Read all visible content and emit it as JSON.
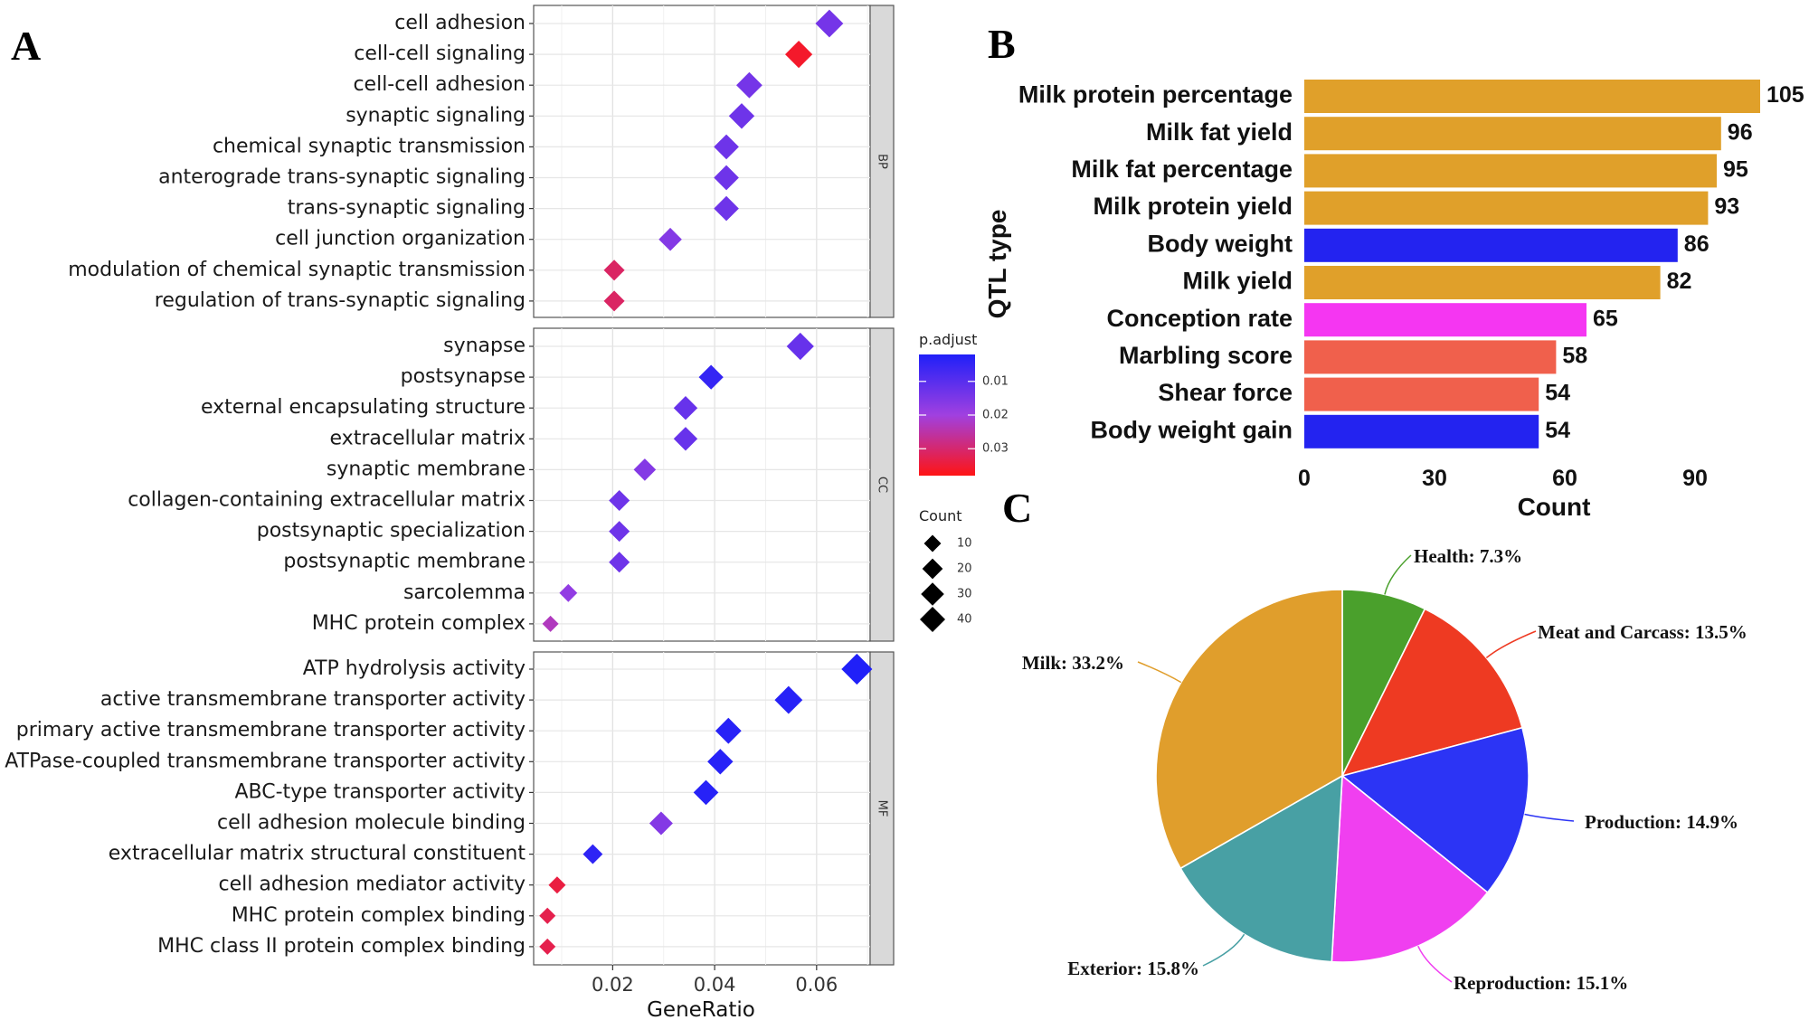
{
  "panels": {
    "a": "A",
    "b": "B",
    "c": "C"
  },
  "chart_data": [
    {
      "type": "scatter",
      "panel": "A",
      "xlabel": "GeneRatio",
      "x_ticks": [
        {
          "label": "0.02",
          "value": 0.02
        },
        {
          "label": "0.04",
          "value": 0.04
        },
        {
          "label": "0.06",
          "value": 0.06
        }
      ],
      "xlim": [
        0.0045,
        0.0705
      ],
      "grid": true,
      "color_scale": {
        "title": "p.adjust",
        "low_color": "#2020f8",
        "mid_color": "#a040e0",
        "high_color": "#ff1414",
        "range": [
          0.002,
          0.038
        ],
        "ticks": [
          {
            "label": "0.01",
            "value": 0.01
          },
          {
            "label": "0.02",
            "value": 0.02
          },
          {
            "label": "0.03",
            "value": 0.03
          }
        ]
      },
      "size_scale": {
        "title": "Count",
        "ticks": [
          {
            "label": "10",
            "value": 10
          },
          {
            "label": "20",
            "value": 20
          },
          {
            "label": "30",
            "value": 30
          },
          {
            "label": "40",
            "value": 40
          }
        ]
      },
      "facets": [
        {
          "name": "BP",
          "terms": [
            {
              "label": "cell adhesion",
              "x": 0.0625,
              "count": 29,
              "p": 0.014
            },
            {
              "label": "cell-cell signaling",
              "x": 0.0565,
              "count": 27,
              "p": 0.036
            },
            {
              "label": "cell-cell adhesion",
              "x": 0.0468,
              "count": 23,
              "p": 0.014
            },
            {
              "label": "synaptic signaling",
              "x": 0.0453,
              "count": 22,
              "p": 0.013
            },
            {
              "label": "chemical synaptic transmission",
              "x": 0.0423,
              "count": 20,
              "p": 0.013
            },
            {
              "label": "anterograde trans-synaptic signaling",
              "x": 0.0423,
              "count": 20,
              "p": 0.013
            },
            {
              "label": "trans-synaptic signaling",
              "x": 0.0423,
              "count": 20,
              "p": 0.013
            },
            {
              "label": "cell junction organization",
              "x": 0.0313,
              "count": 15,
              "p": 0.016
            },
            {
              "label": "modulation of chemical synaptic transmission",
              "x": 0.0203,
              "count": 10,
              "p": 0.031
            },
            {
              "label": "regulation of trans-synaptic signaling",
              "x": 0.0203,
              "count": 10,
              "p": 0.031
            }
          ]
        },
        {
          "name": "CC",
          "terms": [
            {
              "label": "synapse",
              "x": 0.0568,
              "count": 27,
              "p": 0.012
            },
            {
              "label": "postsynapse",
              "x": 0.0393,
              "count": 19,
              "p": 0.005
            },
            {
              "label": "external encapsulating structure",
              "x": 0.0343,
              "count": 17,
              "p": 0.012
            },
            {
              "label": "extracellular matrix",
              "x": 0.0343,
              "count": 17,
              "p": 0.012
            },
            {
              "label": "synaptic membrane",
              "x": 0.0263,
              "count": 13,
              "p": 0.016
            },
            {
              "label": "collagen-containing extracellular matrix",
              "x": 0.0213,
              "count": 10,
              "p": 0.013
            },
            {
              "label": "postsynaptic specialization",
              "x": 0.0213,
              "count": 10,
              "p": 0.013
            },
            {
              "label": "postsynaptic membrane",
              "x": 0.0213,
              "count": 10,
              "p": 0.013
            },
            {
              "label": "sarcolemma",
              "x": 0.0113,
              "count": 5,
              "p": 0.018
            },
            {
              "label": "MHC protein complex",
              "x": 0.0078,
              "count": 3,
              "p": 0.023
            }
          ]
        },
        {
          "name": "MF",
          "terms": [
            {
              "label": "ATP hydrolysis activity",
              "x": 0.0679,
              "count": 40,
              "p": 0.002
            },
            {
              "label": "active transmembrane transporter activity",
              "x": 0.0545,
              "count": 29,
              "p": 0.003
            },
            {
              "label": "primary active transmembrane transporter activity",
              "x": 0.0427,
              "count": 23,
              "p": 0.003
            },
            {
              "label": "ATPase-coupled transmembrane transporter activity",
              "x": 0.0411,
              "count": 22,
              "p": 0.003
            },
            {
              "label": "ABC-type transporter activity",
              "x": 0.0383,
              "count": 20,
              "p": 0.003
            },
            {
              "label": "cell adhesion molecule binding",
              "x": 0.0295,
              "count": 16,
              "p": 0.016
            },
            {
              "label": "extracellular matrix structural constituent",
              "x": 0.0161,
              "count": 8,
              "p": 0.004
            },
            {
              "label": "cell adhesion mediator activity",
              "x": 0.0091,
              "count": 4,
              "p": 0.034
            },
            {
              "label": "MHC protein complex binding",
              "x": 0.0072,
              "count": 3,
              "p": 0.033
            },
            {
              "label": "MHC class II protein complex binding",
              "x": 0.0072,
              "count": 3,
              "p": 0.033
            }
          ]
        }
      ]
    },
    {
      "type": "bar",
      "panel": "B",
      "orientation": "horizontal",
      "xlabel": "Count",
      "ylabel": "QTL type",
      "xlim": [
        0,
        105
      ],
      "x_ticks": [
        0,
        30,
        60,
        90
      ],
      "categories": [
        "Milk protein percentage",
        "Milk fat yield",
        "Milk fat percentage",
        "Milk protein yield",
        "Body weight",
        "Milk yield",
        "Conception rate",
        "Marbling score",
        "Shear force",
        "Body weight gain"
      ],
      "values": [
        105,
        96,
        95,
        93,
        86,
        82,
        65,
        58,
        54,
        54
      ],
      "colors": [
        "#e0a02a",
        "#e0a02a",
        "#e0a02a",
        "#e0a02a",
        "#2323f0",
        "#e0a02a",
        "#f536f2",
        "#f0604c",
        "#f0604c",
        "#2323f0"
      ]
    },
    {
      "type": "pie",
      "panel": "C",
      "slices": [
        {
          "label": "Health: 7.3%",
          "value": 7.3,
          "color": "#4aa02c"
        },
        {
          "label": "Meat and Carcass: 13.5%",
          "value": 13.5,
          "color": "#ee3a22"
        },
        {
          "label": "Production: 14.9%",
          "value": 14.9,
          "color": "#2c34f5"
        },
        {
          "label": "Reproduction: 15.1%",
          "value": 15.1,
          "color": "#f03ff0"
        },
        {
          "label": "Exterior: 15.8%",
          "value": 15.8,
          "color": "#48a0a4"
        },
        {
          "label": "Milk: 33.2%",
          "value": 33.2,
          "color": "#e09e2c"
        }
      ]
    }
  ]
}
